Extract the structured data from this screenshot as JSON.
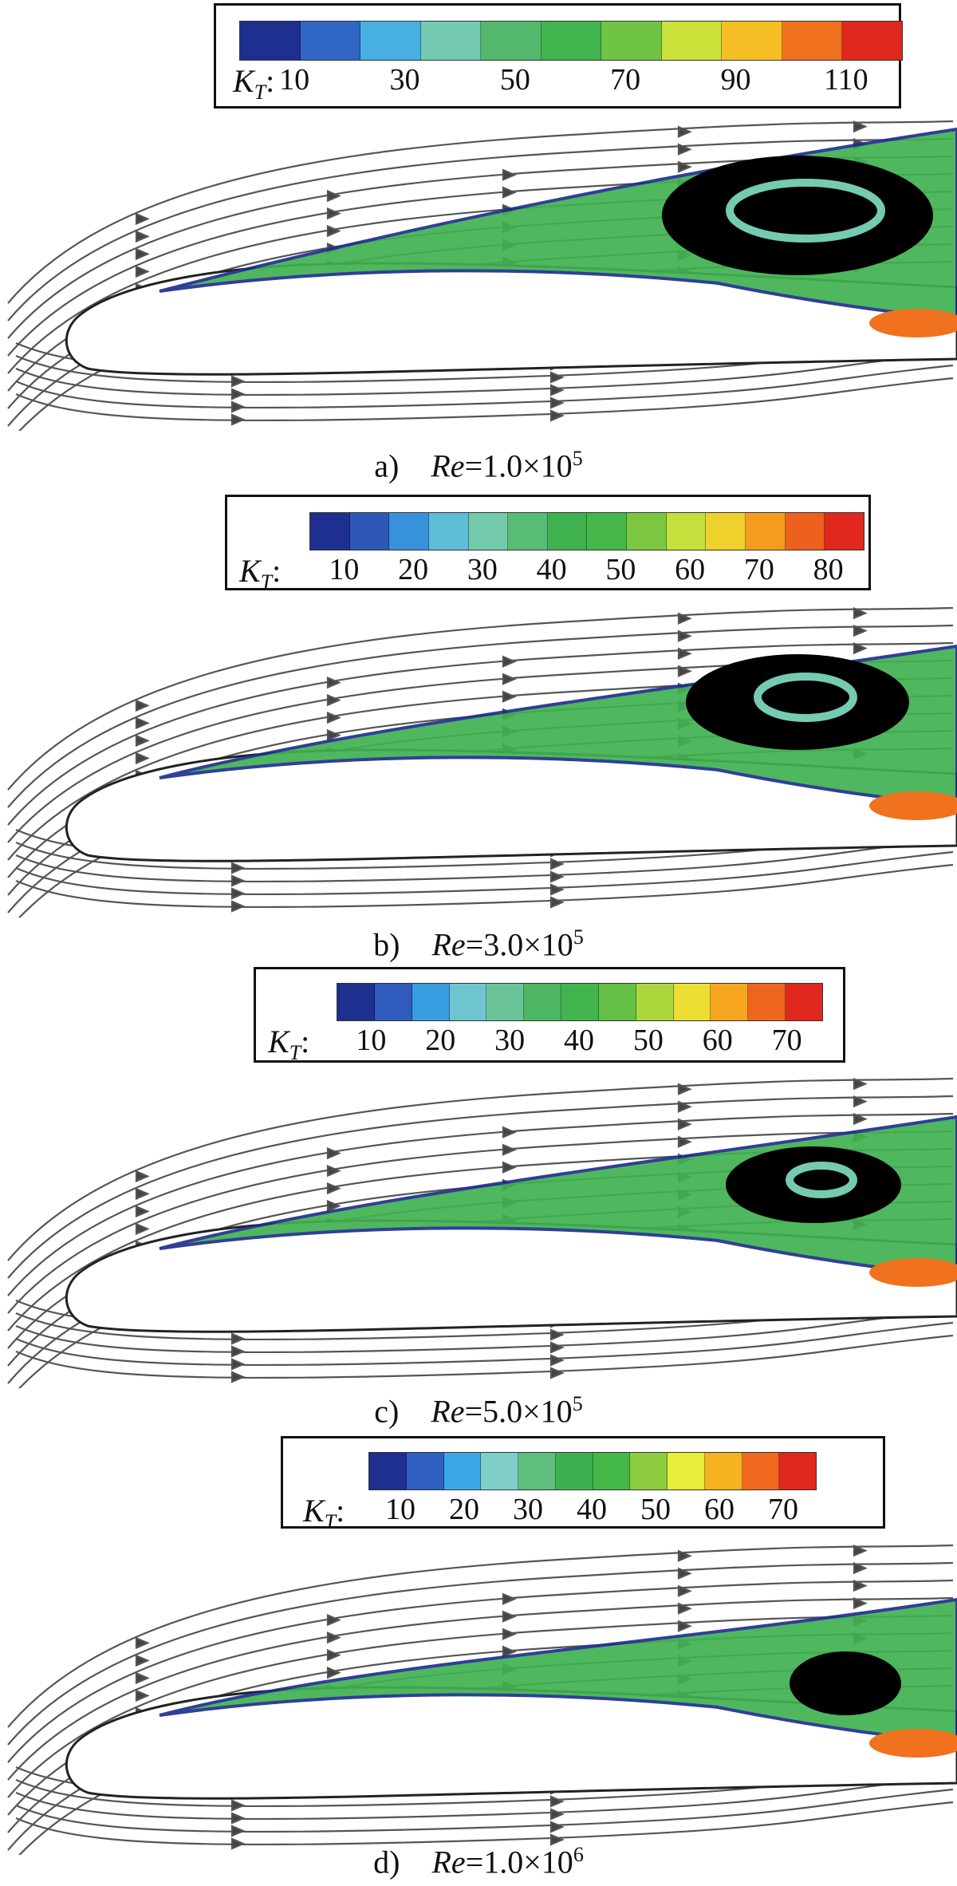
{
  "legend_symbol": "K",
  "legend_sub": "T",
  "legend_colon": ":",
  "colormap": [
    "#1f2f8f",
    "#2f5fc0",
    "#3aa8e6",
    "#7fcfc8",
    "#5fbf7f",
    "#3fb04f",
    "#45b84a",
    "#8ccc3e",
    "#e8ec3a",
    "#f7b21f",
    "#ef6a1e",
    "#e0281e"
  ],
  "panels": [
    {
      "label": "a)",
      "re_symbol": "Re",
      "re_mantissa": "=1.0×10",
      "re_exp": "5",
      "ticks": [
        "10",
        "30",
        "50",
        "70",
        "90",
        "110"
      ],
      "bands": 11
    },
    {
      "label": "b)",
      "re_symbol": "Re",
      "re_mantissa": "=3.0×10",
      "re_exp": "5",
      "ticks": [
        "10",
        "20",
        "30",
        "40",
        "50",
        "60",
        "70",
        "80"
      ],
      "bands": 14
    },
    {
      "label": "c)",
      "re_symbol": "Re",
      "re_mantissa": "=5.0×10",
      "re_exp": "5",
      "ticks": [
        "10",
        "20",
        "30",
        "40",
        "50",
        "60",
        "70"
      ],
      "bands": 13
    },
    {
      "label": "d)",
      "re_symbol": "Re",
      "re_mantissa": "=1.0×10",
      "re_exp": "6",
      "ticks": [
        "10",
        "20",
        "30",
        "40",
        "50",
        "60",
        "70"
      ],
      "bands": 12
    }
  ]
}
